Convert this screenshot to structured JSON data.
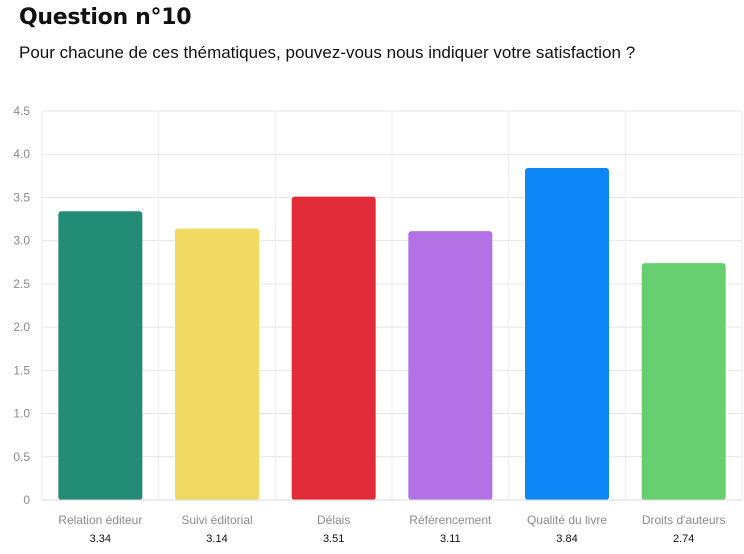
{
  "header": {
    "title": "Question n°10",
    "subtitle": "Pour chacune de ces thématiques, pouvez-vous nous indiquer votre satisfaction ?"
  },
  "chart_data": {
    "type": "bar",
    "categories": [
      "Relation éditeur",
      "Suivi éditorial",
      "Délais",
      "Référencement",
      "Qualité du livre",
      "Droits d'auteurs"
    ],
    "values": [
      3.34,
      3.14,
      3.51,
      3.11,
      3.84,
      2.74
    ],
    "value_labels": [
      "3.34",
      "3.14",
      "3.51",
      "3.11",
      "3.84",
      "2.74"
    ],
    "colors": [
      "#228c74",
      "#f0da62",
      "#e12b39",
      "#b371e6",
      "#0d87f7",
      "#68cf70"
    ],
    "yticks": [
      "0",
      "0.5",
      "1.0",
      "1.5",
      "2.0",
      "2.5",
      "3.0",
      "3.5",
      "4.0",
      "4.5"
    ],
    "ylim": [
      0,
      4.5
    ],
    "grid": true,
    "title": "",
    "xlabel": "",
    "ylabel": ""
  }
}
